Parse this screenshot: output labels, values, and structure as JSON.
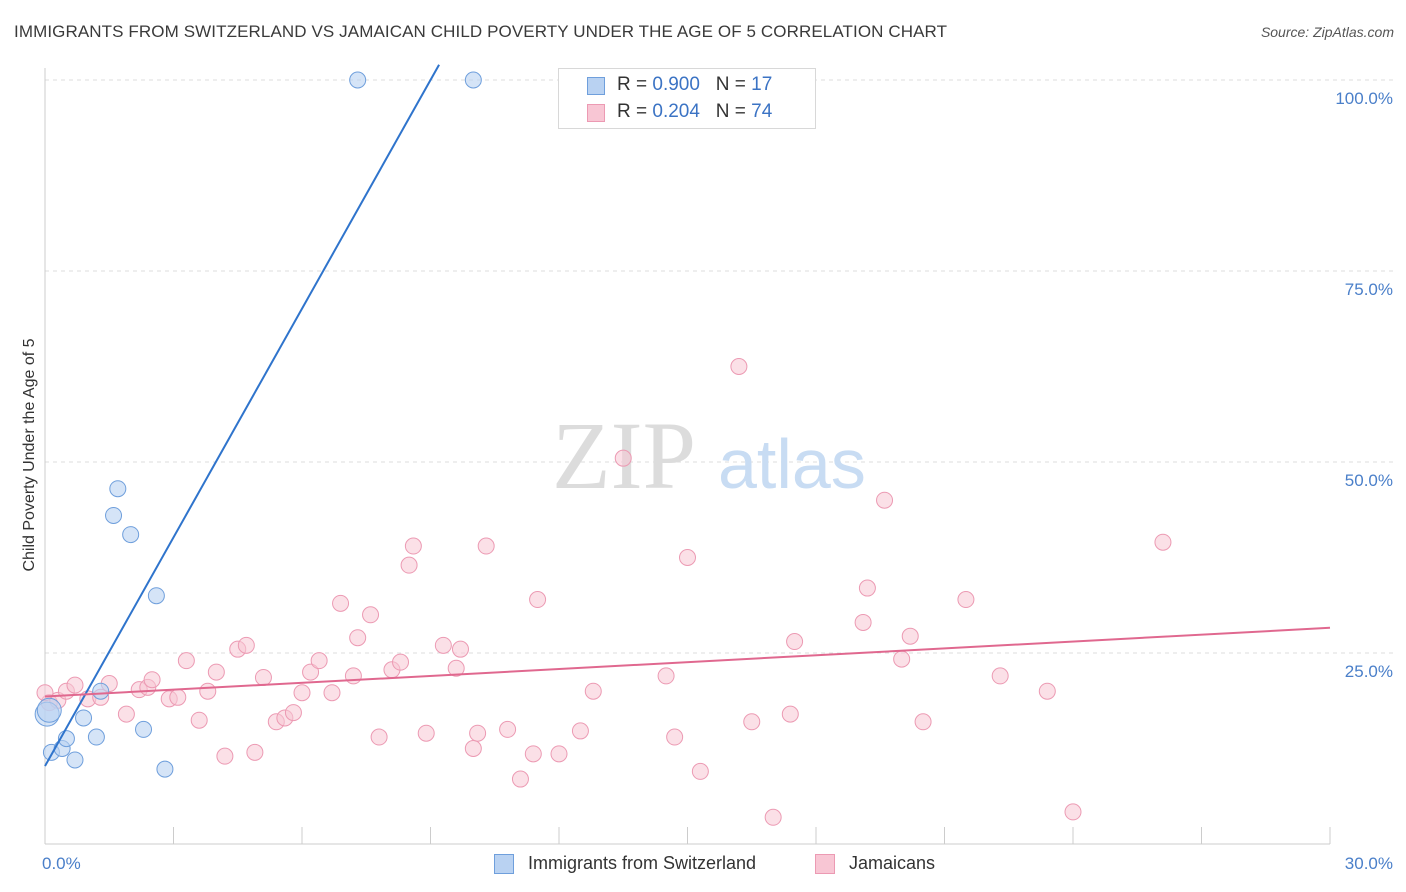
{
  "title": "IMMIGRANTS FROM SWITZERLAND VS JAMAICAN CHILD POVERTY UNDER THE AGE OF 5 CORRELATION CHART",
  "source": "Source: ZipAtlas.com",
  "watermark": {
    "zip": "ZIP",
    "atlas": "atlas"
  },
  "legend": {
    "rows": [
      {
        "r_label": "R =",
        "r_value": "0.900",
        "n_label": "N =",
        "n_value": "17"
      },
      {
        "r_label": "R =",
        "r_value": "0.204",
        "n_label": "N =",
        "n_value": "74"
      }
    ]
  },
  "bottom_legend": [
    "Immigrants from Switzerland",
    "Jamaicans"
  ],
  "colors": {
    "swiss_fill": "#b9d2f2",
    "swiss_stroke": "#6f9fdc",
    "swiss_line": "#2f74cc",
    "jam_fill": "#f8c6d4",
    "jam_stroke": "#ec9ab3",
    "jam_line": "#e0688f",
    "tick_text": "#4a7fc9",
    "grid": "#dddddd"
  },
  "chart_data": {
    "type": "scatter",
    "title": "IMMIGRANTS FROM SWITZERLAND VS JAMAICAN CHILD POVERTY UNDER THE AGE OF 5 CORRELATION CHART",
    "xlabel": "",
    "ylabel": "Child Poverty Under the Age of 5",
    "xlim": [
      0,
      30
    ],
    "ylim": [
      0,
      102
    ],
    "x_ticks": [
      0,
      30
    ],
    "x_tick_labels": [
      "0.0%",
      "30.0%"
    ],
    "y_ticks": [
      25,
      50,
      75,
      100
    ],
    "y_tick_labels": [
      "25.0%",
      "50.0%",
      "75.0%",
      "100.0%"
    ],
    "grid": true,
    "legend_position": "top-center",
    "series": [
      {
        "name": "Immigrants from Switzerland",
        "r": 0.9,
        "n": 17,
        "trend": [
          [
            0.0,
            10.2
          ],
          [
            9.2,
            102.0
          ]
        ],
        "points": [
          [
            0.05,
            17.0
          ],
          [
            0.1,
            17.5
          ],
          [
            0.15,
            12.0
          ],
          [
            0.4,
            12.5
          ],
          [
            0.5,
            13.8
          ],
          [
            0.7,
            11.0
          ],
          [
            0.9,
            16.5
          ],
          [
            1.2,
            14.0
          ],
          [
            1.3,
            20.0
          ],
          [
            1.6,
            43.0
          ],
          [
            1.7,
            46.5
          ],
          [
            2.0,
            40.5
          ],
          [
            2.3,
            15.0
          ],
          [
            2.6,
            32.5
          ],
          [
            2.8,
            9.8
          ],
          [
            7.3,
            100.0
          ],
          [
            10.0,
            100.0
          ]
        ]
      },
      {
        "name": "Jamaicans",
        "r": 0.204,
        "n": 74,
        "trend": [
          [
            0.0,
            19.3
          ],
          [
            30.0,
            28.3
          ]
        ],
        "points": [
          [
            0.1,
            18.5
          ],
          [
            0.3,
            18.8
          ],
          [
            0.5,
            20.0
          ],
          [
            0.7,
            20.8
          ],
          [
            1.0,
            19.0
          ],
          [
            1.3,
            19.2
          ],
          [
            1.5,
            21.0
          ],
          [
            1.9,
            17.0
          ],
          [
            2.2,
            20.2
          ],
          [
            2.4,
            20.5
          ],
          [
            2.5,
            21.5
          ],
          [
            2.9,
            19.0
          ],
          [
            3.1,
            19.2
          ],
          [
            3.3,
            24.0
          ],
          [
            3.6,
            16.2
          ],
          [
            3.8,
            20.0
          ],
          [
            4.0,
            22.5
          ],
          [
            4.2,
            11.5
          ],
          [
            4.5,
            25.5
          ],
          [
            4.7,
            26.0
          ],
          [
            4.9,
            12.0
          ],
          [
            5.1,
            21.8
          ],
          [
            5.4,
            16.0
          ],
          [
            5.6,
            16.5
          ],
          [
            5.8,
            17.2
          ],
          [
            6.0,
            19.8
          ],
          [
            6.2,
            22.5
          ],
          [
            6.4,
            24.0
          ],
          [
            6.7,
            19.8
          ],
          [
            6.9,
            31.5
          ],
          [
            7.2,
            22.0
          ],
          [
            7.3,
            27.0
          ],
          [
            7.6,
            30.0
          ],
          [
            7.8,
            14.0
          ],
          [
            8.1,
            22.8
          ],
          [
            8.3,
            23.8
          ],
          [
            8.5,
            36.5
          ],
          [
            8.6,
            39.0
          ],
          [
            8.9,
            14.5
          ],
          [
            9.3,
            26.0
          ],
          [
            9.6,
            23.0
          ],
          [
            9.7,
            25.5
          ],
          [
            10.0,
            12.5
          ],
          [
            10.1,
            14.5
          ],
          [
            10.3,
            39.0
          ],
          [
            10.8,
            15.0
          ],
          [
            11.1,
            8.5
          ],
          [
            11.4,
            11.8
          ],
          [
            11.5,
            32.0
          ],
          [
            12.0,
            11.8
          ],
          [
            12.5,
            14.8
          ],
          [
            12.8,
            20.0
          ],
          [
            13.5,
            50.5
          ],
          [
            14.5,
            22.0
          ],
          [
            14.7,
            14.0
          ],
          [
            15.0,
            37.5
          ],
          [
            15.3,
            9.5
          ],
          [
            16.2,
            62.5
          ],
          [
            16.5,
            16.0
          ],
          [
            17.0,
            3.5
          ],
          [
            17.4,
            17.0
          ],
          [
            17.5,
            26.5
          ],
          [
            19.1,
            29.0
          ],
          [
            19.2,
            33.5
          ],
          [
            19.6,
            45.0
          ],
          [
            20.0,
            24.2
          ],
          [
            20.2,
            27.2
          ],
          [
            20.5,
            16.0
          ],
          [
            21.5,
            32.0
          ],
          [
            22.3,
            22.0
          ],
          [
            23.4,
            20.0
          ],
          [
            24.0,
            4.2
          ],
          [
            26.1,
            39.5
          ],
          [
            0.0,
            19.8
          ]
        ]
      }
    ]
  }
}
